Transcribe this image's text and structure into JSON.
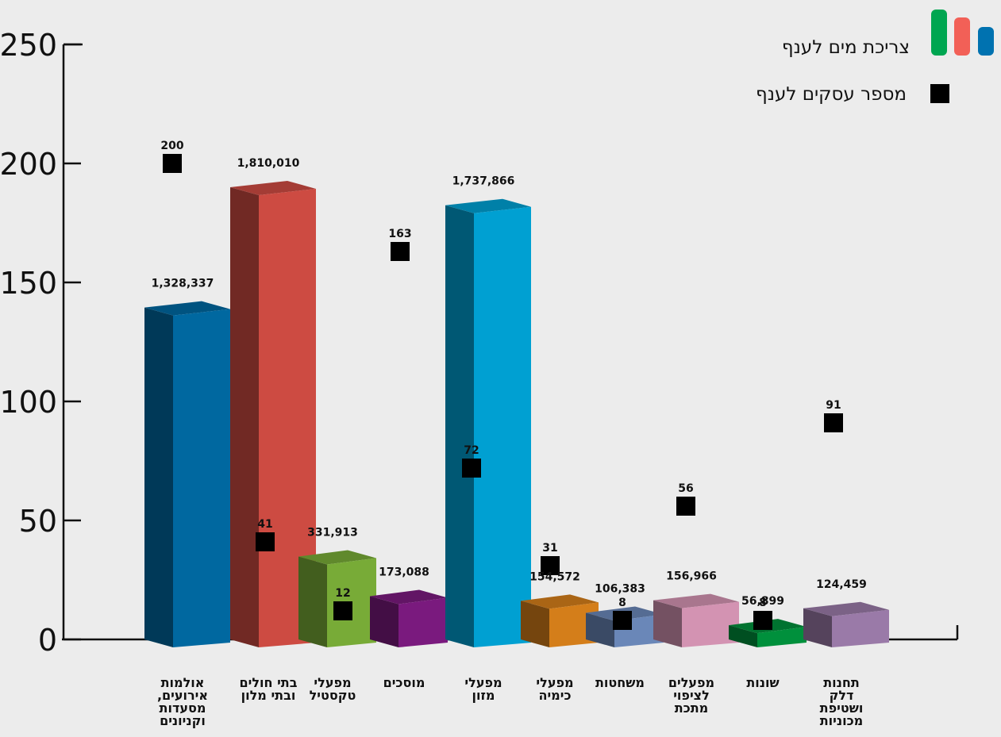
{
  "chart_data": {
    "type": "bar",
    "title": "",
    "xlabel": "",
    "ylabel": "",
    "ylim": [
      0,
      250
    ],
    "yticks": [
      0,
      50,
      100,
      150,
      200,
      250
    ],
    "grid": false,
    "legend_position": "top-right",
    "categories": [
      [
        "אולמות",
        "אירועים,",
        "מסעדות",
        "וקניונים"
      ],
      [
        "בתי חולים",
        "ובתי מלון"
      ],
      [
        "מפעלי",
        "טקסטיל"
      ],
      [
        "מוסכים"
      ],
      [
        "מפעלי",
        "מזון"
      ],
      [
        "מפעלי",
        "כימיה"
      ],
      [
        "משחטות"
      ],
      [
        "מפעלים",
        "לציפוי",
        "מתכת"
      ],
      [
        "שונות"
      ],
      [
        "תחנות",
        "דלק",
        "ושטיפת",
        "מכוניות"
      ]
    ],
    "series": [
      {
        "name": "צריכת מים לענף",
        "kind": "bar",
        "values": [
          1328337,
          1810010,
          331913,
          173088,
          1737866,
          154572,
          106383,
          156966,
          56899,
          124459
        ],
        "labels": [
          "1,328,337",
          "1,810,010",
          "331,913",
          "173,088",
          "1,737,866",
          "154,572",
          "106,383",
          "156,966",
          "56,899",
          "124,459"
        ],
        "colors": [
          "#0068a0",
          "#cd4b42",
          "#78ab37",
          "#7a1a7e",
          "#00a0d2",
          "#d47e1a",
          "#6a87b8",
          "#d393b2",
          "#00903c",
          "#9a7aa8"
        ]
      },
      {
        "name": "מספר עסקים לענף",
        "kind": "marker",
        "values": [
          200,
          41,
          12,
          163,
          72,
          31,
          8,
          56,
          8,
          91
        ],
        "labels": [
          "200",
          "41",
          "12",
          "163",
          "72",
          "31",
          "8",
          "56",
          "8",
          "91"
        ],
        "color": "#000000"
      }
    ],
    "legend_icon_colors": [
      "#00a651",
      "#f26057",
      "#0072b0"
    ]
  }
}
